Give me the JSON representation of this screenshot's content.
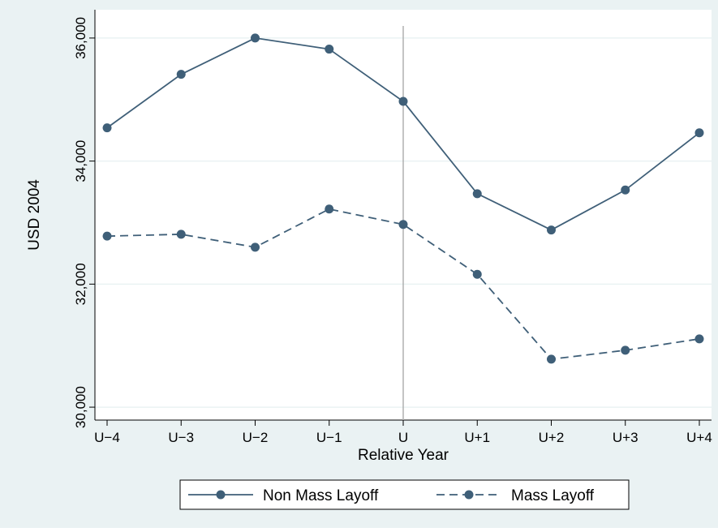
{
  "chart_data": {
    "type": "line",
    "xlabel": "Relative Year",
    "ylabel": "USD 2004",
    "categories": [
      "U−4",
      "U−3",
      "U−2",
      "U−1",
      "U",
      "U+1",
      "U+2",
      "U+3",
      "U+4"
    ],
    "series": [
      {
        "name": "Non Mass Layoff",
        "color": "#3f5f78",
        "line_style": "solid",
        "values": [
          34540,
          35410,
          36000,
          35820,
          34970,
          33470,
          32880,
          33530,
          34460
        ]
      },
      {
        "name": "Mass Layoff",
        "color": "#3f5f78",
        "line_style": "dashed",
        "values": [
          32780,
          32810,
          32600,
          33220,
          32970,
          32160,
          30780,
          30925,
          31110
        ]
      }
    ],
    "ylim": [
      29790,
      36460
    ],
    "yticks": [
      {
        "value": 30000,
        "label": "30,000"
      },
      {
        "value": 32000,
        "label": "32,000"
      },
      {
        "value": 34000,
        "label": "34,000"
      },
      {
        "value": 36000,
        "label": "36,000"
      }
    ],
    "xline": "U",
    "grid": true,
    "legend": "bottom"
  }
}
